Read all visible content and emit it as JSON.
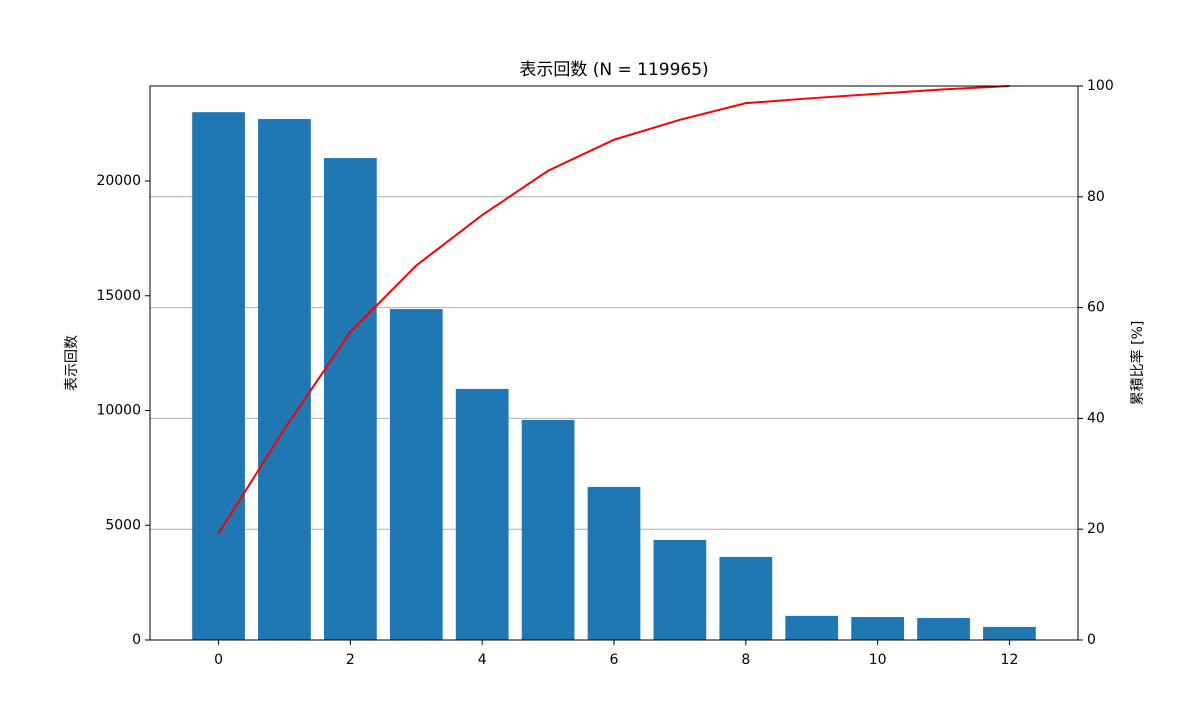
{
  "chart_data": {
    "type": "bar",
    "title": "表示回数 (N = 119965)",
    "ylabel": "表示回数",
    "y2label": "累積比率 [%]",
    "x": [
      0,
      1,
      2,
      3,
      4,
      5,
      6,
      7,
      8,
      9,
      10,
      11,
      12
    ],
    "series": [
      {
        "type": "bar",
        "color": "#1f77b4",
        "values": [
          23000,
          22700,
          21000,
          14420,
          10940,
          9590,
          6670,
          4360,
          3620,
          1050,
          1000,
          960,
          570
        ]
      },
      {
        "type": "line",
        "axis": "y2",
        "color": "#ff0000",
        "values": [
          19.2,
          38.1,
          55.6,
          67.6,
          76.7,
          84.7,
          90.3,
          93.9,
          96.9,
          97.8,
          98.6,
          99.4,
          100
        ]
      }
    ],
    "xlim": [
      -1.04,
      13.04
    ],
    "xticks": [
      0,
      2,
      4,
      6,
      8,
      10,
      12
    ],
    "ylim": [
      0,
      24140
    ],
    "yticks": [
      0,
      5000,
      10000,
      15000,
      20000
    ],
    "y2lim": [
      0,
      100
    ],
    "y2ticks": [
      0,
      20,
      40,
      60,
      80,
      100
    ],
    "grid": "y2"
  }
}
